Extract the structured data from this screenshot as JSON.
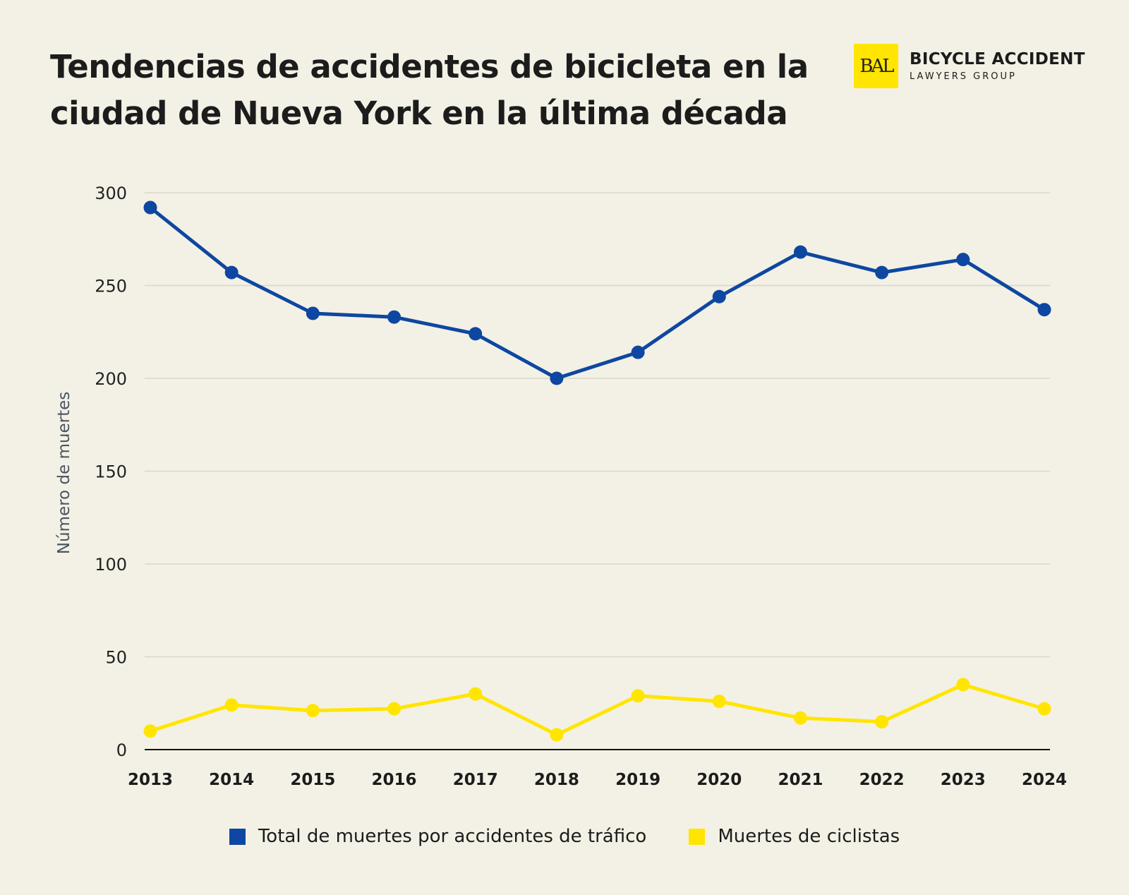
{
  "title": "Tendencias de accidentes de bicicleta en la ciudad de Nueva York en la última década",
  "logo": {
    "monogram": "BAL",
    "main": "BICYCLE ACCIDENT",
    "sub": "LAWYERS GROUP"
  },
  "colors": {
    "background": "#f3f1e5",
    "blue": "#0e47a1",
    "yellow": "#ffe500",
    "grid": "#d9d6ca"
  },
  "chart_data": {
    "type": "line",
    "title": "Tendencias de accidentes de bicicleta en la ciudad de Nueva York en la última década",
    "xlabel": "",
    "ylabel": "Número de muertes",
    "ylim": [
      0,
      300
    ],
    "yticks": [
      "0",
      "50",
      "100",
      "150",
      "200",
      "250",
      "300"
    ],
    "grid": true,
    "legend_position": "bottom",
    "categories": [
      "2013",
      "2014",
      "2015",
      "2016",
      "2017",
      "2018",
      "2019",
      "2020",
      "2021",
      "2022",
      "2023",
      "2024"
    ],
    "series": [
      {
        "name": "Total de muertes por accidentes de tráfico",
        "color": "#0e47a1",
        "values": [
          292,
          257,
          235,
          233,
          224,
          200,
          214,
          244,
          268,
          257,
          264,
          237
        ]
      },
      {
        "name": "Muertes de ciclistas",
        "color": "#ffe500",
        "values": [
          10,
          24,
          21,
          22,
          30,
          8,
          29,
          26,
          17,
          15,
          35,
          22
        ]
      }
    ]
  }
}
